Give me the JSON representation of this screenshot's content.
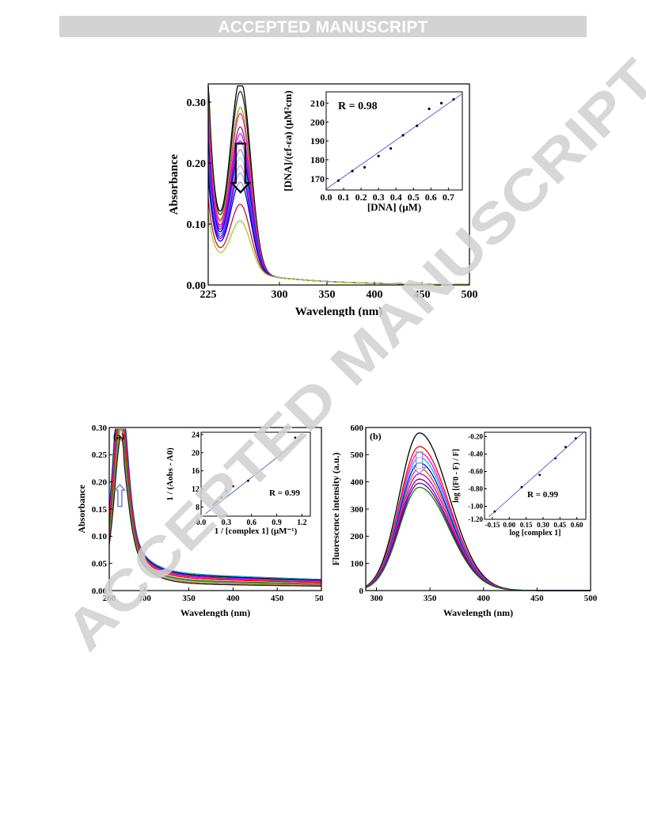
{
  "header": {
    "banner": "ACCEPTED MANUSCRIPT"
  },
  "watermark": {
    "text": "ACCEPTED MANUSCRIPT"
  },
  "chart_data": [
    {
      "type": "line",
      "id": "fig1",
      "title": "",
      "xlabel": "Wavelength (nm)",
      "ylabel": "Absorbance",
      "xlim": [
        225,
        500
      ],
      "ylim": [
        0,
        0.33
      ],
      "xticks": [
        225,
        300,
        350,
        400,
        450,
        500
      ],
      "yticks": [
        0.0,
        0.1,
        0.2,
        0.3
      ],
      "peak_x": 259,
      "peak_values": [
        0.314,
        0.294,
        0.268,
        0.258,
        0.236,
        0.225,
        0.213,
        0.199,
        0.186,
        0.173,
        0.161,
        0.146,
        0.11,
        0.083
      ],
      "series_colors": [
        "#000000",
        "#303030",
        "#a8a800",
        "#ff2080",
        "#7030a0",
        "#ff00ff",
        "#8000ff",
        "#00008b",
        "#1e90ff",
        "#d000d0",
        "#2020ff",
        "#0000cd",
        "#d01030",
        "#9acd32"
      ],
      "arrow": "down",
      "inset": {
        "type": "scatter",
        "xlabel": "[DNA] (μM)",
        "ylabel": "[DNA]/(εf-εa) (μM²cm)",
        "annotation": "R = 0.98",
        "xlim": [
          0,
          0.78
        ],
        "ylim": [
          164,
          216
        ],
        "xticks": [
          0.0,
          0.1,
          0.2,
          0.3,
          0.4,
          0.5,
          0.6,
          0.7
        ],
        "yticks": [
          170,
          180,
          190,
          200,
          210
        ],
        "points": [
          [
            0.07,
            169
          ],
          [
            0.15,
            174
          ],
          [
            0.22,
            176
          ],
          [
            0.3,
            182
          ],
          [
            0.37,
            186
          ],
          [
            0.44,
            193
          ],
          [
            0.52,
            198
          ],
          [
            0.59,
            207
          ],
          [
            0.66,
            210
          ],
          [
            0.73,
            212
          ]
        ],
        "fit": [
          [
            0.0,
            164.5
          ],
          [
            0.78,
            215
          ]
        ]
      }
    },
    {
      "type": "line",
      "id": "fig2a",
      "title": "(a)",
      "xlabel": "Wavelength (nm)",
      "ylabel": "Absorbance",
      "xlim": [
        260,
        500
      ],
      "ylim": [
        0,
        0.3
      ],
      "xticks": [
        260,
        300,
        350,
        400,
        450,
        500
      ],
      "yticks": [
        0.0,
        0.05,
        0.1,
        0.15,
        0.2,
        0.25,
        0.3
      ],
      "peak_values": [
        0.258,
        0.252,
        0.244,
        0.232,
        0.225,
        0.218,
        0.205,
        0.184,
        0.172,
        0.155,
        0.142
      ],
      "series_colors": [
        "#4169e1",
        "#00bfff",
        "#000000",
        "#ff00ff",
        "#8000ff",
        "#d04060",
        "#ff0000",
        "#00a000",
        "#707070",
        "#c08040",
        "#202020"
      ],
      "arrow": "up",
      "inset": {
        "type": "scatter",
        "xlabel": "1 / [complex 1] (μM⁻¹)",
        "ylabel": "1 / (Aobs - A0)",
        "annotation": "R = 0.99",
        "xlim": [
          0,
          1.3
        ],
        "ylim": [
          6,
          24.5
        ],
        "xticks": [
          0.0,
          0.3,
          0.6,
          0.9,
          1.2
        ],
        "yticks": [
          8,
          12,
          16,
          20,
          24
        ],
        "points": [
          [
            0.15,
            8.5
          ],
          [
            0.17,
            8.9
          ],
          [
            0.19,
            9.2
          ],
          [
            0.24,
            10.1
          ],
          [
            0.3,
            11.5
          ],
          [
            0.38,
            12.6
          ],
          [
            0.56,
            13.8
          ],
          [
            1.12,
            23.3
          ]
        ],
        "fit": [
          [
            0.05,
            6.5
          ],
          [
            1.25,
            24.0
          ]
        ]
      }
    },
    {
      "type": "line",
      "id": "fig2b",
      "title": "(b)",
      "xlabel": "Wavelength (nm)",
      "ylabel": "Fluorescence intensity (a.u.)",
      "xlim": [
        290,
        500
      ],
      "ylim": [
        0,
        600
      ],
      "xticks": [
        300,
        350,
        400,
        450,
        500
      ],
      "yticks": [
        0,
        100,
        200,
        300,
        400,
        500,
        600
      ],
      "peak_x": 340,
      "peak_values": [
        580,
        530,
        508,
        490,
        470,
        450,
        430,
        410,
        395,
        380
      ],
      "series_colors": [
        "#000000",
        "#ff0000",
        "#ff00ff",
        "#00bcd4",
        "#0000ff",
        "#d05020",
        "#c000c0",
        "#800080",
        "#6000a0",
        "#008000"
      ],
      "arrow": "down",
      "inset": {
        "type": "scatter",
        "xlabel": "log [complex 1]",
        "ylabel": "log [(F0 - F) / F]",
        "annotation": "R = 0.99",
        "xlim": [
          -0.22,
          0.68
        ],
        "ylim": [
          -1.15,
          -0.15
        ],
        "xticks": [
          -0.15,
          0.0,
          0.15,
          0.3,
          0.45,
          0.6
        ],
        "xtick_labels": [
          "-0.15",
          "0.00",
          "0.15",
          "0.30",
          "0.45",
          "0.60"
        ],
        "yticks": [
          -1.2,
          -1.0,
          -0.8,
          -0.6,
          -0.4,
          -0.2
        ],
        "ytick_labels": [
          "-1.20",
          "-1.00",
          "-0.80",
          "-0.60",
          "-0.40",
          "-0.20"
        ],
        "points": [
          [
            -0.13,
            -1.06
          ],
          [
            0.11,
            -0.78
          ],
          [
            0.27,
            -0.64
          ],
          [
            0.41,
            -0.45
          ],
          [
            0.5,
            -0.32
          ],
          [
            0.59,
            -0.22
          ]
        ],
        "fit": [
          [
            -0.18,
            -1.12
          ],
          [
            0.67,
            -0.14
          ]
        ]
      }
    }
  ]
}
